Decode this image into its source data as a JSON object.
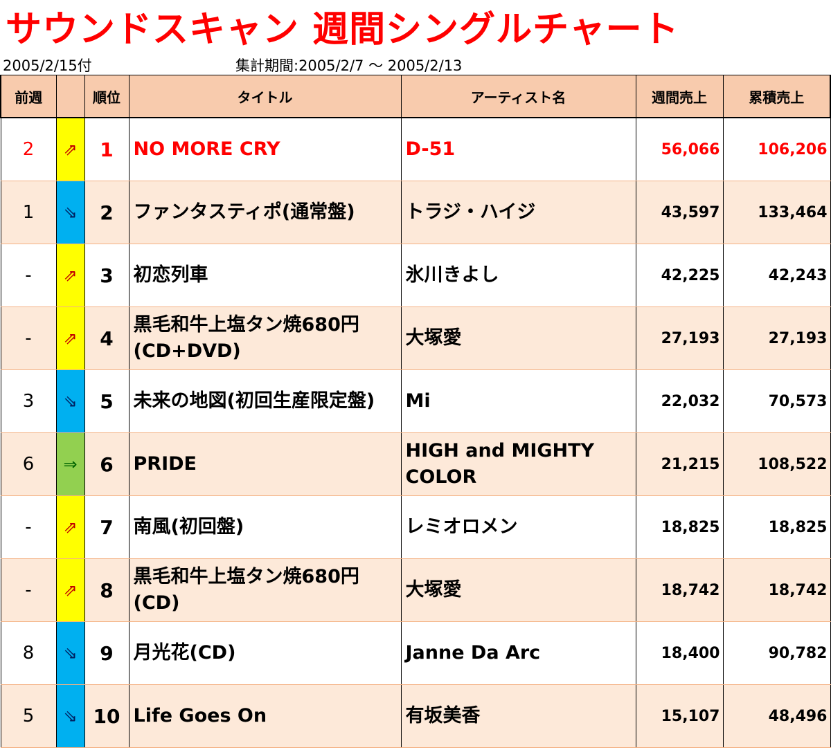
{
  "header": {
    "title": "サウンドスキャン 週間シングルチャート",
    "date": "2005/2/15付",
    "period": "集計期間:2005/2/7 ～ 2005/2/13"
  },
  "columns": {
    "prev": "前週",
    "move": "",
    "rank": "順位",
    "title": "タイトル",
    "artist": "アーティスト名",
    "weekly": "週間売上",
    "total": "累積売上"
  },
  "colors": {
    "up": "#ffff00",
    "down": "#00b0f0",
    "same": "#92d050",
    "highlight": "#ff0000",
    "header_bg": "#f8cbad",
    "stripe_bg": "#fde9d9"
  },
  "rows": [
    {
      "prev": "2",
      "move": "⇗",
      "move_type": "up",
      "rank": "1",
      "title": "NO MORE CRY",
      "artist": "D-51",
      "weekly": "56,066",
      "total": "106,206"
    },
    {
      "prev": "1",
      "move": "⇘",
      "move_type": "down",
      "rank": "2",
      "title": "ファンタスティポ(通常盤)",
      "artist": "トラジ・ハイジ",
      "weekly": "43,597",
      "total": "133,464"
    },
    {
      "prev": "-",
      "move": "⇗",
      "move_type": "up",
      "rank": "3",
      "title": "初恋列車",
      "artist": "氷川きよし",
      "weekly": "42,225",
      "total": "42,243"
    },
    {
      "prev": "-",
      "move": "⇗",
      "move_type": "up",
      "rank": "4",
      "title": "黒毛和牛上塩タン焼680円(CD+DVD)",
      "artist": "大塚愛",
      "weekly": "27,193",
      "total": "27,193"
    },
    {
      "prev": "3",
      "move": "⇘",
      "move_type": "down",
      "rank": "5",
      "title": "未来の地図(初回生産限定盤)",
      "artist": "Mi",
      "weekly": "22,032",
      "total": "70,573"
    },
    {
      "prev": "6",
      "move": "⇒",
      "move_type": "same",
      "rank": "6",
      "title": "PRIDE",
      "artist": "HIGH and MIGHTY COLOR",
      "weekly": "21,215",
      "total": "108,522"
    },
    {
      "prev": "-",
      "move": "⇗",
      "move_type": "up",
      "rank": "7",
      "title": "南風(初回盤)",
      "artist": "レミオロメン",
      "weekly": "18,825",
      "total": "18,825"
    },
    {
      "prev": "-",
      "move": "⇗",
      "move_type": "up",
      "rank": "8",
      "title": "黒毛和牛上塩タン焼680円(CD)",
      "artist": "大塚愛",
      "weekly": "18,742",
      "total": "18,742"
    },
    {
      "prev": "8",
      "move": "⇘",
      "move_type": "down",
      "rank": "9",
      "title": "月光花(CD)",
      "artist": "Janne Da Arc",
      "weekly": "18,400",
      "total": "90,782"
    },
    {
      "prev": "5",
      "move": "⇘",
      "move_type": "down",
      "rank": "10",
      "title": "Life Goes On",
      "artist": "有坂美香",
      "weekly": "15,107",
      "total": "48,496"
    }
  ]
}
